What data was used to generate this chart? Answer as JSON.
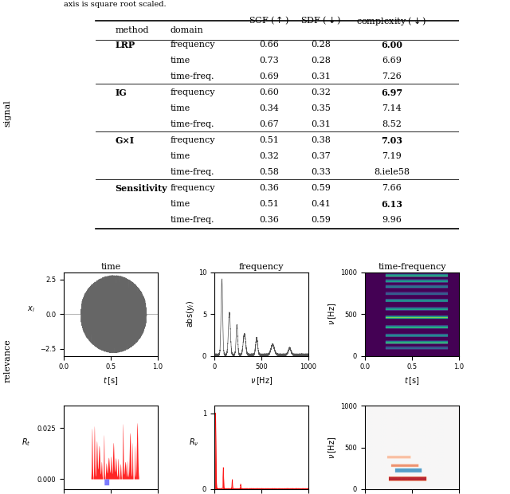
{
  "caption": "axis is square root scaled.",
  "table_data": [
    [
      "LRP",
      "frequency",
      "0.66",
      "0.28",
      "6.00",
      true
    ],
    [
      "",
      "time",
      "0.73",
      "0.28",
      "6.69",
      false
    ],
    [
      "",
      "time-freq.",
      "0.69",
      "0.31",
      "7.26",
      false
    ],
    [
      "IG",
      "frequency",
      "0.60",
      "0.32",
      "6.97",
      true
    ],
    [
      "",
      "time",
      "0.34",
      "0.35",
      "7.14",
      false
    ],
    [
      "",
      "time-freq.",
      "0.67",
      "0.31",
      "8.52",
      false
    ],
    [
      "G×I",
      "frequency",
      "0.51",
      "0.38",
      "7.03",
      true
    ],
    [
      "",
      "time",
      "0.32",
      "0.37",
      "7.19",
      false
    ],
    [
      "",
      "time-freq.",
      "0.58",
      "0.33",
      "8.iele58",
      false
    ],
    [
      "Sensitivity",
      "frequency",
      "0.36",
      "0.59",
      "7.66",
      false
    ],
    [
      "",
      "time",
      "0.51",
      "0.41",
      "6.13",
      true
    ],
    [
      "",
      "time-freq.",
      "0.36",
      "0.59",
      "9.96",
      false
    ]
  ],
  "bold_method": [
    0,
    3,
    6,
    9
  ],
  "separator_rows": [
    3,
    6,
    9
  ],
  "col_titles": [
    "time",
    "frequency",
    "time-frequency"
  ],
  "bg_color": "#ffffff"
}
